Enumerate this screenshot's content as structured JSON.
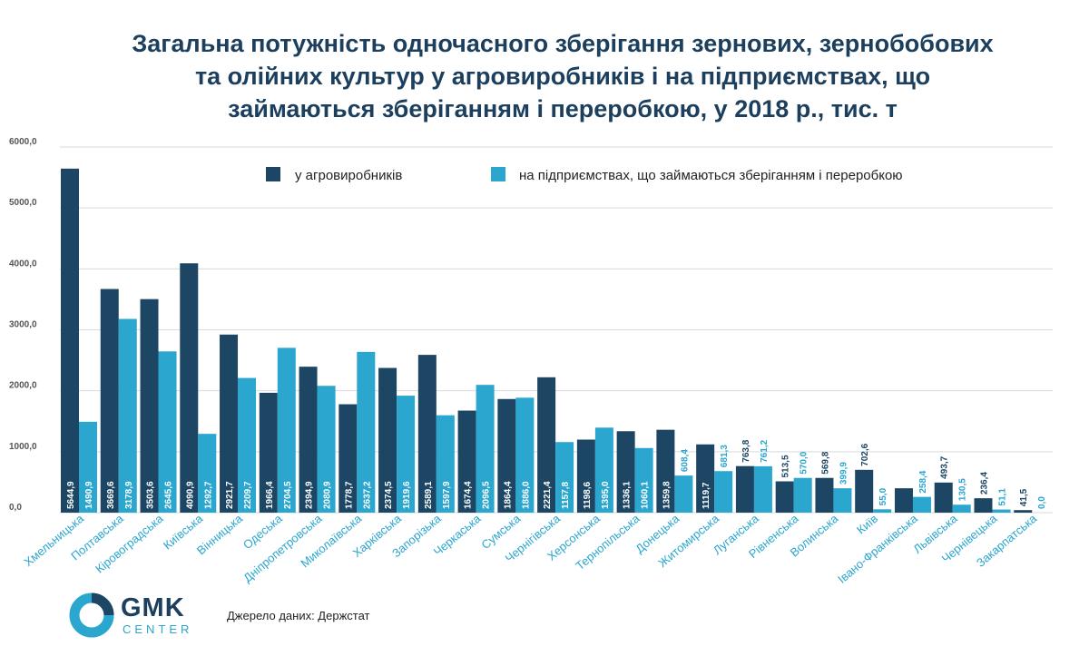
{
  "title_lines": [
    "Загальна потужність одночасного зберігання зернових, зернобобових",
    "та олійних культур у агровиробників і на підприємствах, що",
    "займаються зберіганням і переробкою, у 2018 р., тис. т"
  ],
  "source": "Джерело даних: Держстат",
  "logo": {
    "name": "GMK",
    "sub": "CENTER"
  },
  "colors": {
    "series1": "#1c4663",
    "series2": "#2aa6cf",
    "title": "#1c3f5e"
  },
  "chart_data": {
    "type": "bar",
    "title": "Загальна потужність одночасного зберігання зернових, зернобобових та олійних культур у агровиробників і на підприємствах, що займаються зберіганням і переробкою, у 2018 р., тис. т",
    "categories": [
      "Хмельницька",
      "Полтавська",
      "Кіровоградська",
      "Київська",
      "Вінницька",
      "Одеська",
      "Дніпропетровська",
      "Миколаївська",
      "Харківська",
      "Запорізька",
      "Черкаська",
      "Сумська",
      "Чернігівська",
      "Херсонська",
      "Тернопільська",
      "Донецька",
      "Житомирська",
      "Луганська",
      "Рівненська",
      "Волинська",
      "Київ",
      "Івано-Франківська",
      "Львівська",
      "Чернівецька",
      "Закарпатська"
    ],
    "series": [
      {
        "name": "у агровиробників",
        "values": [
          5644.9,
          3669.6,
          3503.6,
          4090.9,
          2921.7,
          1966.4,
          2394.9,
          1778.7,
          2374.5,
          2589.1,
          1674.4,
          1864.4,
          2221.4,
          1198.6,
          1336.1,
          1359.8,
          1119.7,
          763.8,
          513.5,
          569.8,
          702.6,
          400,
          493.7,
          236.4,
          41.5
        ],
        "labels": [
          "5644,9",
          "3669,6",
          "3503,6",
          "4090,9",
          "2921,7",
          "1966,4",
          "2394,9",
          "1778,7",
          "2374,5",
          "2589,1",
          "1674,4",
          "1864,4",
          "2221,4",
          "1198,6",
          "1336,1",
          "1359,8",
          "1119,7",
          "763,8",
          "513,5",
          "569,8",
          "702,6",
          "",
          "493,7",
          "236,4",
          "41,5"
        ]
      },
      {
        "name": "на підприємствах, що займаються зберіганням і переробкою",
        "values": [
          1490.9,
          3178.9,
          2645.6,
          1292.7,
          2209.7,
          2704.5,
          2080.9,
          2637.2,
          1919.6,
          1597.9,
          2096.5,
          1886.0,
          1157.8,
          1395.0,
          1060.1,
          608.4,
          681.3,
          761.2,
          570.0,
          399.9,
          55.0,
          258.4,
          130.5,
          51.1,
          0.0
        ],
        "labels": [
          "1490,9",
          "3178,9",
          "2645,6",
          "1292,7",
          "2209,7",
          "2704,5",
          "2080,9",
          "2637,2",
          "1919,6",
          "1597,9",
          "2096,5",
          "1886,0",
          "1157,8",
          "1395,0",
          "1060,1",
          "608,4",
          "681,3",
          "761,2",
          "570,0",
          "399,9",
          "55,0",
          "258,4",
          "130,5",
          "51,1",
          "0,0"
        ]
      }
    ],
    "yticks": [
      "0,0",
      "1000,0",
      "2000,0",
      "3000,0",
      "4000,0",
      "5000,0",
      "6000,0"
    ],
    "ylim": [
      0,
      6000
    ],
    "grid": true,
    "legend": "top-center"
  }
}
